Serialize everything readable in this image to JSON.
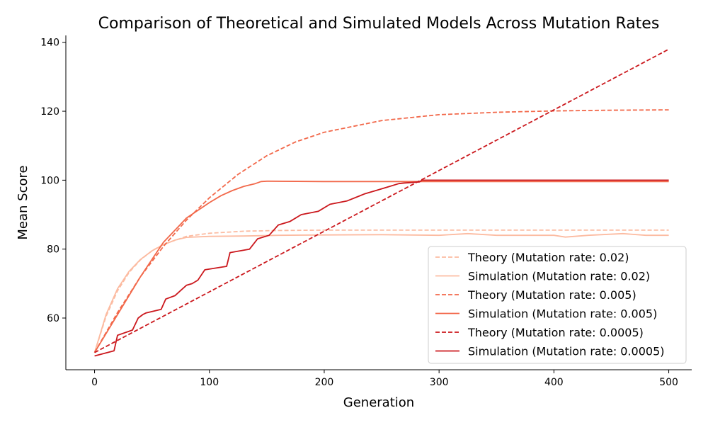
{
  "chart_data": {
    "type": "line",
    "title": "Comparison of Theoretical and Simulated Models Across Mutation Rates",
    "xlabel": "Generation",
    "ylabel": "Mean Score",
    "xlim": [
      -25,
      520
    ],
    "ylim": [
      45,
      142
    ],
    "xticks": [
      0,
      100,
      200,
      300,
      400,
      500
    ],
    "yticks": [
      60,
      80,
      100,
      120,
      140
    ],
    "grid": false,
    "legend_position": "lower-right",
    "series": [
      {
        "name": "Theory (Mutation rate: 0.02)",
        "color": "#fcbba1",
        "dash": "dashed",
        "x": [
          0,
          10,
          20,
          30,
          40,
          50,
          60,
          80,
          100,
          130,
          160,
          200,
          300,
          400,
          500
        ],
        "y": [
          50,
          60.5,
          67.9,
          73.2,
          76.9,
          79.5,
          81.4,
          83.7,
          84.6,
          85.2,
          85.4,
          85.5,
          85.5,
          85.5,
          85.5
        ]
      },
      {
        "name": "Simulation (Mutation rate: 0.02)",
        "color": "#fcbba1",
        "dash": "solid",
        "x": [
          0,
          10,
          20,
          30,
          40,
          50,
          60,
          70,
          80,
          100,
          130,
          160,
          200,
          250,
          300,
          325,
          350,
          400,
          410,
          430,
          460,
          480,
          500
        ],
        "y": [
          50,
          61,
          68.5,
          73.5,
          77,
          79.5,
          81.3,
          82.6,
          83.4,
          83.7,
          83.8,
          84,
          84.1,
          84.2,
          84,
          84.5,
          84,
          84,
          83.5,
          84,
          84.5,
          84,
          84
        ]
      },
      {
        "name": "Theory (Mutation rate: 0.005)",
        "color": "#f2684a",
        "dash": "dashed",
        "x": [
          0,
          20,
          40,
          60,
          80,
          100,
          125,
          150,
          175,
          200,
          250,
          300,
          350,
          400,
          450,
          500
        ],
        "y": [
          50,
          61.6,
          72,
          80.8,
          88.4,
          94.9,
          101.7,
          107.1,
          111.1,
          113.9,
          117.3,
          119,
          119.7,
          120.1,
          120.3,
          120.4
        ]
      },
      {
        "name": "Simulation (Mutation rate: 0.005)",
        "color": "#f2684a",
        "dash": "solid",
        "x": [
          0,
          20,
          40,
          60,
          80,
          100,
          110,
          120,
          130,
          140,
          145,
          150,
          200,
          300,
          400,
          500
        ],
        "y": [
          50,
          61,
          72,
          82,
          89,
          93.5,
          95.5,
          97,
          98.2,
          99,
          99.6,
          99.7,
          99.6,
          99.6,
          99.6,
          99.6
        ]
      },
      {
        "name": "Theory (Mutation rate: 0.0005)",
        "color": "#cb181d",
        "dash": "dashed",
        "x": [
          0,
          100,
          200,
          300,
          400,
          500
        ],
        "y": [
          50,
          67.6,
          85.2,
          102.8,
          120.4,
          138
        ]
      },
      {
        "name": "Simulation (Mutation rate: 0.0005)",
        "color": "#cb181d",
        "dash": "solid",
        "x": [
          0,
          17,
          20,
          33,
          38,
          42,
          45,
          58,
          62,
          70,
          75,
          80,
          85,
          90,
          96,
          115,
          118,
          135,
          142,
          152,
          160,
          170,
          180,
          195,
          205,
          220,
          235,
          245,
          255,
          265,
          270,
          283,
          285,
          300,
          400,
          500
        ],
        "y": [
          49,
          50.5,
          55,
          56.5,
          60,
          61,
          61.5,
          62.5,
          65.5,
          66.5,
          68,
          69.5,
          70,
          71,
          74,
          75,
          79,
          80,
          83,
          84,
          87,
          88,
          90,
          91,
          93,
          94,
          96,
          97,
          98,
          99,
          99.2,
          99.5,
          100,
          100,
          100,
          100
        ]
      }
    ]
  }
}
